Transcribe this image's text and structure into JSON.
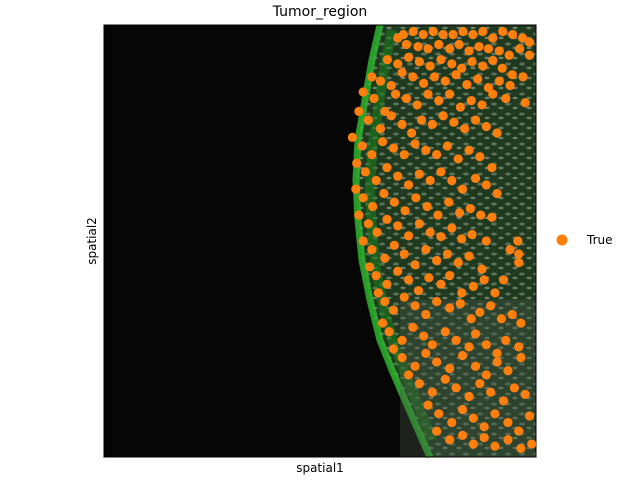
{
  "chart_data": {
    "type": "scatter",
    "title": "Tumor_region",
    "xlabel": "spatial1",
    "ylabel": "spatial2",
    "xlim": [
      0,
      1000
    ],
    "ylim": [
      0,
      1000
    ],
    "grid": false,
    "legend_position": "right",
    "background": "spatial tissue image (dark field, green tissue edge, grey cell texture)",
    "series": [
      {
        "name": "True",
        "color": "#ff7f0e",
        "points": [
          [
            680,
            970
          ],
          [
            693,
            978
          ],
          [
            716,
            985
          ],
          [
            739,
            978
          ],
          [
            762,
            985
          ],
          [
            785,
            978
          ],
          [
            808,
            978
          ],
          [
            831,
            985
          ],
          [
            854,
            978
          ],
          [
            877,
            985
          ],
          [
            900,
            970
          ],
          [
            923,
            985
          ],
          [
            946,
            978
          ],
          [
            969,
            970
          ],
          [
            985,
            960
          ],
          [
            700,
            955
          ],
          [
            727,
            950
          ],
          [
            750,
            945
          ],
          [
            775,
            955
          ],
          [
            800,
            945
          ],
          [
            822,
            955
          ],
          [
            845,
            940
          ],
          [
            868,
            950
          ],
          [
            890,
            945
          ],
          [
            915,
            940
          ],
          [
            938,
            930
          ],
          [
            962,
            945
          ],
          [
            985,
            930
          ],
          [
            656,
            920
          ],
          [
            680,
            910
          ],
          [
            705,
            925
          ],
          [
            730,
            915
          ],
          [
            755,
            905
          ],
          [
            780,
            920
          ],
          [
            805,
            910
          ],
          [
            828,
            900
          ],
          [
            852,
            915
          ],
          [
            877,
            905
          ],
          [
            900,
            918
          ],
          [
            922,
            900
          ],
          [
            945,
            885
          ],
          [
            970,
            880
          ],
          [
            620,
            880
          ],
          [
            640,
            870
          ],
          [
            665,
            860
          ],
          [
            690,
            890
          ],
          [
            715,
            880
          ],
          [
            740,
            865
          ],
          [
            765,
            880
          ],
          [
            790,
            870
          ],
          [
            815,
            885
          ],
          [
            840,
            862
          ],
          [
            865,
            875
          ],
          [
            890,
            855
          ],
          [
            915,
            870
          ],
          [
            940,
            860
          ],
          [
            975,
            820
          ],
          [
            600,
            845
          ],
          [
            625,
            830
          ],
          [
            650,
            800
          ],
          [
            675,
            840
          ],
          [
            700,
            830
          ],
          [
            725,
            815
          ],
          [
            750,
            840
          ],
          [
            775,
            825
          ],
          [
            800,
            840
          ],
          [
            825,
            810
          ],
          [
            850,
            825
          ],
          [
            875,
            815
          ],
          [
            900,
            840
          ],
          [
            930,
            830
          ],
          [
            590,
            800
          ],
          [
            612,
            780
          ],
          [
            640,
            760
          ],
          [
            665,
            790
          ],
          [
            690,
            770
          ],
          [
            712,
            750
          ],
          [
            735,
            780
          ],
          [
            760,
            770
          ],
          [
            785,
            790
          ],
          [
            810,
            775
          ],
          [
            835,
            760
          ],
          [
            860,
            780
          ],
          [
            885,
            765
          ],
          [
            910,
            750
          ],
          [
            575,
            740
          ],
          [
            598,
            720
          ],
          [
            620,
            700
          ],
          [
            645,
            730
          ],
          [
            670,
            715
          ],
          [
            695,
            700
          ],
          [
            720,
            725
          ],
          [
            745,
            710
          ],
          [
            770,
            700
          ],
          [
            795,
            720
          ],
          [
            820,
            690
          ],
          [
            845,
            710
          ],
          [
            870,
            695
          ],
          [
            898,
            670
          ],
          [
            585,
            680
          ],
          [
            605,
            660
          ],
          [
            630,
            640
          ],
          [
            655,
            670
          ],
          [
            680,
            650
          ],
          [
            705,
            630
          ],
          [
            730,
            655
          ],
          [
            755,
            640
          ],
          [
            780,
            660
          ],
          [
            805,
            640
          ],
          [
            830,
            620
          ],
          [
            860,
            645
          ],
          [
            885,
            630
          ],
          [
            910,
            610
          ],
          [
            583,
            620
          ],
          [
            600,
            600
          ],
          [
            622,
            580
          ],
          [
            648,
            610
          ],
          [
            672,
            590
          ],
          [
            697,
            570
          ],
          [
            722,
            600
          ],
          [
            748,
            580
          ],
          [
            773,
            560
          ],
          [
            798,
            590
          ],
          [
            823,
            565
          ],
          [
            848,
            575
          ],
          [
            872,
            560
          ],
          [
            898,
            555
          ],
          [
            590,
            560
          ],
          [
            612,
            540
          ],
          [
            632,
            520
          ],
          [
            655,
            550
          ],
          [
            680,
            535
          ],
          [
            705,
            512
          ],
          [
            730,
            540
          ],
          [
            755,
            520
          ],
          [
            780,
            510
          ],
          [
            805,
            530
          ],
          [
            828,
            505
          ],
          [
            852,
            515
          ],
          [
            885,
            500
          ],
          [
            958,
            500
          ],
          [
            600,
            500
          ],
          [
            620,
            480
          ],
          [
            650,
            460
          ],
          [
            672,
            490
          ],
          [
            695,
            470
          ],
          [
            720,
            445
          ],
          [
            745,
            480
          ],
          [
            770,
            455
          ],
          [
            795,
            470
          ],
          [
            820,
            450
          ],
          [
            845,
            465
          ],
          [
            875,
            435
          ],
          [
            940,
            480
          ],
          [
            960,
            470
          ],
          [
            615,
            440
          ],
          [
            630,
            420
          ],
          [
            655,
            400
          ],
          [
            680,
            430
          ],
          [
            705,
            410
          ],
          [
            728,
            385
          ],
          [
            752,
            415
          ],
          [
            780,
            400
          ],
          [
            800,
            420
          ],
          [
            828,
            380
          ],
          [
            855,
            395
          ],
          [
            880,
            410
          ],
          [
            905,
            380
          ],
          [
            925,
            410
          ],
          [
            960,
            450
          ],
          [
            635,
            380
          ],
          [
            650,
            360
          ],
          [
            670,
            340
          ],
          [
            695,
            370
          ],
          [
            720,
            350
          ],
          [
            745,
            330
          ],
          [
            770,
            360
          ],
          [
            800,
            345
          ],
          [
            825,
            355
          ],
          [
            850,
            320
          ],
          [
            870,
            335
          ],
          [
            895,
            350
          ],
          [
            920,
            320
          ],
          [
            945,
            330
          ],
          [
            965,
            310
          ],
          [
            645,
            310
          ],
          [
            660,
            290
          ],
          [
            690,
            270
          ],
          [
            715,
            300
          ],
          [
            740,
            280
          ],
          [
            760,
            260
          ],
          [
            790,
            290
          ],
          [
            815,
            270
          ],
          [
            845,
            255
          ],
          [
            860,
            285
          ],
          [
            885,
            260
          ],
          [
            910,
            240
          ],
          [
            930,
            270
          ],
          [
            960,
            255
          ],
          [
            670,
            250
          ],
          [
            690,
            230
          ],
          [
            720,
            210
          ],
          [
            745,
            240
          ],
          [
            770,
            220
          ],
          [
            800,
            205
          ],
          [
            830,
            235
          ],
          [
            860,
            210
          ],
          [
            885,
            190
          ],
          [
            910,
            220
          ],
          [
            935,
            200
          ],
          [
            965,
            230
          ],
          [
            705,
            190
          ],
          [
            730,
            170
          ],
          [
            760,
            150
          ],
          [
            790,
            180
          ],
          [
            815,
            160
          ],
          [
            845,
            140
          ],
          [
            870,
            170
          ],
          [
            895,
            150
          ],
          [
            925,
            130
          ],
          [
            950,
            160
          ],
          [
            975,
            145
          ],
          [
            750,
            120
          ],
          [
            775,
            100
          ],
          [
            805,
            80
          ],
          [
            830,
            110
          ],
          [
            855,
            90
          ],
          [
            880,
            70
          ],
          [
            905,
            100
          ],
          [
            935,
            80
          ],
          [
            960,
            60
          ],
          [
            985,
            95
          ],
          [
            770,
            60
          ],
          [
            800,
            40
          ],
          [
            830,
            50
          ],
          [
            855,
            30
          ],
          [
            880,
            45
          ],
          [
            905,
            25
          ],
          [
            935,
            40
          ],
          [
            965,
            20
          ],
          [
            990,
            30
          ]
        ]
      }
    ]
  }
}
